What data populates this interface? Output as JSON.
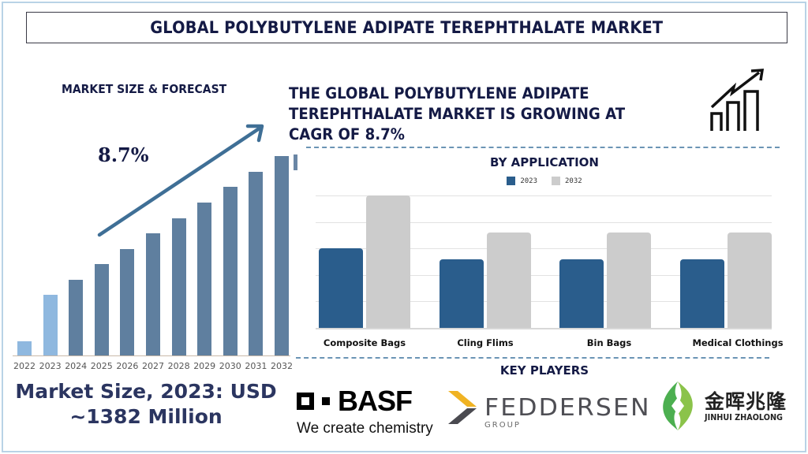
{
  "header": {
    "title": "GLOBAL POLYBUTYLENE ADIPATE TEREPHTHALATE  MARKET"
  },
  "market_forecast": {
    "heading": "MARKET SIZE & FORECAST",
    "cagr_label": "8.7%",
    "market_size_line1": "Market Size, 2023: USD",
    "market_size_line2": "~1382 Million"
  },
  "headline": {
    "line1": "THE GLOBAL POLYBUTYLENE ADIPATE",
    "line2": "TEREPHTHALATE MARKET IS GROWING AT",
    "line3": "CAGR OF 8.7%",
    "icon": "growth-chart-icon"
  },
  "application": {
    "title": "BY APPLICATION",
    "legend": [
      {
        "label": "2023",
        "color": "#2a5d8c"
      },
      {
        "label": "2032",
        "color": "#cccccc"
      }
    ]
  },
  "key_players": {
    "title": "KEY PLAYERS",
    "players": [
      {
        "name": "BASF",
        "tagline": "We create chemistry"
      },
      {
        "name": "FEDDERSEN",
        "subtitle": "GROUP"
      },
      {
        "name_cn": "金晖兆隆",
        "name_en": "JINHUI ZHAOLONG"
      }
    ]
  },
  "colors": {
    "title_navy": "#141a45",
    "bar_historic": "#8fb8df",
    "bar_forecast": "#5f7f9f",
    "app_2023": "#2a5d8c",
    "app_2032": "#cccccc",
    "dashed_divider": "#6b94b5",
    "frame": "#b9d3e6"
  },
  "chart_data": [
    {
      "type": "bar",
      "title": "MARKET SIZE & FORECAST",
      "categories": [
        "2022",
        "2023",
        "2024",
        "2025",
        "2026",
        "2027",
        "2028",
        "2029",
        "2030",
        "2031",
        "2032"
      ],
      "values": [
        19,
        78,
        97,
        117,
        136,
        156,
        175,
        195,
        215,
        234,
        254
      ],
      "value_units": "relative bar height (no y-axis shown)",
      "highlighted_historic": [
        "2022",
        "2023"
      ],
      "annotation": "8.7% CAGR trend arrow",
      "xlabel": "",
      "ylabel": "",
      "grid": false
    },
    {
      "type": "bar",
      "title": "BY APPLICATION",
      "categories": [
        "Composite Bags",
        "Cling Flims",
        "Bin Bags",
        "Medical Clothings"
      ],
      "series": [
        {
          "name": "2023",
          "values": [
            3.0,
            2.6,
            2.6,
            2.6
          ]
        },
        {
          "name": "2032",
          "values": [
            5.0,
            3.6,
            3.6,
            3.6
          ]
        }
      ],
      "ylim": [
        0,
        5
      ],
      "value_units": "gridline units (no y-axis labels shown)",
      "legend_position": "top",
      "grid": true,
      "xlabel": "",
      "ylabel": ""
    }
  ]
}
